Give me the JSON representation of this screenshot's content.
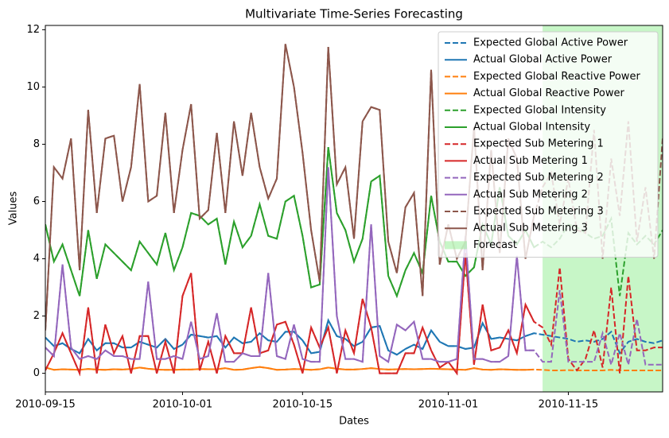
{
  "chart_data": {
    "type": "line",
    "title": "Multivariate Time-Series Forecasting",
    "x_label": "Dates",
    "y_label": "Values",
    "x": [
      "2010-09-15",
      "2010-09-16",
      "2010-09-17",
      "2010-09-18",
      "2010-09-19",
      "2010-09-20",
      "2010-09-21",
      "2010-09-22",
      "2010-09-23",
      "2010-09-24",
      "2010-09-25",
      "2010-09-26",
      "2010-09-27",
      "2010-09-28",
      "2010-09-29",
      "2010-09-30",
      "2010-10-01",
      "2010-10-02",
      "2010-10-03",
      "2010-10-04",
      "2010-10-05",
      "2010-10-06",
      "2010-10-07",
      "2010-10-08",
      "2010-10-09",
      "2010-10-10",
      "2010-10-11",
      "2010-10-12",
      "2010-10-13",
      "2010-10-14",
      "2010-10-15",
      "2010-10-16",
      "2010-10-17",
      "2010-10-18",
      "2010-10-19",
      "2010-10-20",
      "2010-10-21",
      "2010-10-22",
      "2010-10-23",
      "2010-10-24",
      "2010-10-25",
      "2010-10-26",
      "2010-10-27",
      "2010-10-28",
      "2010-10-29",
      "2010-10-30",
      "2010-10-31",
      "2010-11-01",
      "2010-11-02",
      "2010-11-03",
      "2010-11-04",
      "2010-11-05",
      "2010-11-06",
      "2010-11-07",
      "2010-11-08",
      "2010-11-09",
      "2010-11-10",
      "2010-11-11",
      "2010-11-12",
      "2010-11-13",
      "2010-11-14",
      "2010-11-15",
      "2010-11-16",
      "2010-11-17",
      "2010-11-18",
      "2010-11-19",
      "2010-11-20",
      "2010-11-21",
      "2010-11-22",
      "2010-11-23",
      "2010-11-24",
      "2010-11-25",
      "2010-11-26"
    ],
    "series": [
      {
        "name": "Expected Global Active Power",
        "color": "#1f77b4",
        "style": "dashed",
        "values": [
          1.25,
          0.95,
          1.05,
          0.85,
          0.7,
          1.2,
          0.8,
          1.05,
          1.05,
          0.9,
          0.9,
          1.1,
          1.0,
          0.9,
          1.2,
          0.85,
          1.0,
          1.35,
          1.3,
          1.25,
          1.3,
          0.9,
          1.25,
          1.05,
          1.1,
          1.4,
          1.15,
          1.1,
          1.45,
          1.45,
          1.15,
          0.7,
          0.75,
          1.85,
          1.3,
          1.2,
          0.95,
          1.1,
          1.6,
          1.65,
          0.8,
          0.65,
          0.85,
          1.0,
          0.85,
          1.5,
          1.1,
          0.95,
          0.95,
          0.85,
          0.9,
          1.75,
          1.2,
          1.25,
          1.2,
          1.15,
          1.3,
          1.4,
          1.35,
          1.3,
          1.25,
          1.2,
          1.1,
          1.15,
          1.1,
          1.2,
          1.45,
          0.7,
          1.1,
          1.2,
          1.1,
          1.05,
          1.15
        ]
      },
      {
        "name": "Actual Global Active Power",
        "color": "#1f77b4",
        "style": "solid",
        "values": [
          1.25,
          0.95,
          1.05,
          0.85,
          0.7,
          1.2,
          0.8,
          1.05,
          1.05,
          0.9,
          0.9,
          1.1,
          1.0,
          0.9,
          1.2,
          0.85,
          1.0,
          1.35,
          1.3,
          1.25,
          1.3,
          0.9,
          1.25,
          1.05,
          1.1,
          1.4,
          1.15,
          1.1,
          1.45,
          1.45,
          1.15,
          0.7,
          0.75,
          1.85,
          1.3,
          1.2,
          0.95,
          1.1,
          1.6,
          1.65,
          0.8,
          0.65,
          0.85,
          1.0,
          0.85,
          1.5,
          1.1,
          0.95,
          0.95,
          0.85,
          0.9,
          1.75,
          1.2,
          1.25,
          1.2,
          1.15,
          1.3,
          1.4,
          null,
          null,
          null,
          null,
          null,
          null,
          null,
          null,
          null,
          null,
          null,
          null,
          null,
          null,
          null
        ]
      },
      {
        "name": "Expected Global Reactive Power",
        "color": "#ff7f0e",
        "style": "dashed",
        "values": [
          0.2,
          0.12,
          0.14,
          0.13,
          0.12,
          0.15,
          0.13,
          0.12,
          0.14,
          0.13,
          0.15,
          0.2,
          0.16,
          0.13,
          0.12,
          0.12,
          0.13,
          0.13,
          0.15,
          0.14,
          0.14,
          0.18,
          0.12,
          0.13,
          0.18,
          0.22,
          0.18,
          0.12,
          0.13,
          0.15,
          0.14,
          0.12,
          0.14,
          0.2,
          0.16,
          0.13,
          0.13,
          0.15,
          0.18,
          0.15,
          0.13,
          0.14,
          0.15,
          0.14,
          0.15,
          0.16,
          0.15,
          0.14,
          0.13,
          0.12,
          0.18,
          0.13,
          0.12,
          0.14,
          0.13,
          0.12,
          0.12,
          0.13,
          0.12,
          0.1,
          0.1,
          0.11,
          0.1,
          0.1,
          0.1,
          0.1,
          0.12,
          0.1,
          0.1,
          0.1,
          0.1,
          0.1,
          0.1
        ]
      },
      {
        "name": "Actual Global Reactive Power",
        "color": "#ff7f0e",
        "style": "solid",
        "values": [
          0.2,
          0.12,
          0.14,
          0.13,
          0.12,
          0.15,
          0.13,
          0.12,
          0.14,
          0.13,
          0.15,
          0.2,
          0.16,
          0.13,
          0.12,
          0.12,
          0.13,
          0.13,
          0.15,
          0.14,
          0.14,
          0.18,
          0.12,
          0.13,
          0.18,
          0.22,
          0.18,
          0.12,
          0.13,
          0.15,
          0.14,
          0.12,
          0.14,
          0.2,
          0.16,
          0.13,
          0.13,
          0.15,
          0.18,
          0.15,
          0.13,
          0.14,
          0.15,
          0.14,
          0.15,
          0.16,
          0.15,
          0.14,
          0.13,
          0.12,
          0.18,
          0.13,
          0.12,
          0.14,
          0.13,
          0.12,
          0.12,
          0.13,
          null,
          null,
          null,
          null,
          null,
          null,
          null,
          null,
          null,
          null,
          null,
          null,
          null,
          null,
          null
        ]
      },
      {
        "name": "Expected Global Intensity",
        "color": "#2ca02c",
        "style": "dashed",
        "values": [
          5.2,
          3.9,
          4.5,
          3.6,
          2.7,
          5.0,
          3.3,
          4.5,
          4.2,
          3.9,
          3.6,
          4.6,
          4.2,
          3.8,
          4.9,
          3.6,
          4.4,
          5.6,
          5.5,
          5.2,
          5.4,
          3.8,
          5.3,
          4.4,
          4.8,
          5.9,
          4.8,
          4.7,
          6.0,
          6.2,
          4.8,
          3.0,
          3.1,
          7.9,
          5.6,
          5.0,
          3.9,
          4.7,
          6.7,
          6.9,
          3.4,
          2.7,
          3.6,
          4.2,
          3.5,
          6.2,
          4.6,
          3.9,
          3.9,
          3.4,
          3.7,
          5.2,
          4.5,
          6.5,
          4.8,
          4.5,
          5.0,
          4.4,
          4.6,
          4.4,
          4.7,
          5.2,
          5.1,
          4.9,
          4.7,
          4.8,
          5.4,
          2.7,
          4.9,
          4.5,
          4.8,
          4.5,
          5.0
        ]
      },
      {
        "name": "Actual Global Intensity",
        "color": "#2ca02c",
        "style": "solid",
        "values": [
          5.2,
          3.9,
          4.5,
          3.6,
          2.7,
          5.0,
          3.3,
          4.5,
          4.2,
          3.9,
          3.6,
          4.6,
          4.2,
          3.8,
          4.9,
          3.6,
          4.4,
          5.6,
          5.5,
          5.2,
          5.4,
          3.8,
          5.3,
          4.4,
          4.8,
          5.9,
          4.8,
          4.7,
          6.0,
          6.2,
          4.8,
          3.0,
          3.1,
          7.9,
          5.6,
          5.0,
          3.9,
          4.7,
          6.7,
          6.9,
          3.4,
          2.7,
          3.6,
          4.2,
          3.5,
          6.2,
          4.6,
          3.9,
          3.9,
          3.4,
          3.7,
          5.2,
          4.5,
          6.5,
          4.8,
          4.5,
          5.0,
          4.4,
          null,
          null,
          null,
          null,
          null,
          null,
          null,
          null,
          null,
          null,
          null,
          null,
          null,
          null,
          null
        ]
      },
      {
        "name": "Expected Sub Metering 1",
        "color": "#d62728",
        "style": "dashed",
        "values": [
          0.1,
          0.7,
          1.4,
          0.7,
          0.0,
          2.3,
          0.0,
          1.7,
          0.7,
          1.3,
          0.0,
          1.3,
          1.3,
          0.0,
          1.1,
          0.0,
          2.7,
          3.5,
          0.1,
          1.1,
          0.0,
          1.3,
          0.7,
          0.7,
          2.3,
          0.7,
          0.8,
          1.7,
          1.8,
          1.0,
          0.0,
          1.6,
          0.9,
          1.6,
          0.0,
          1.5,
          0.7,
          2.6,
          1.6,
          0.0,
          0.0,
          0.0,
          0.7,
          0.7,
          1.6,
          0.8,
          0.2,
          0.4,
          0.0,
          4.2,
          0.3,
          2.4,
          0.8,
          0.9,
          1.5,
          0.7,
          2.4,
          1.8,
          1.6,
          1.0,
          3.7,
          0.5,
          0.1,
          0.5,
          1.5,
          0.2,
          3.0,
          0.0,
          3.4,
          0.8,
          0.8,
          0.9,
          0.9
        ]
      },
      {
        "name": "Actual Sub Metering 1",
        "color": "#d62728",
        "style": "solid",
        "values": [
          0.1,
          0.7,
          1.4,
          0.7,
          0.0,
          2.3,
          0.0,
          1.7,
          0.7,
          1.3,
          0.0,
          1.3,
          1.3,
          0.0,
          1.1,
          0.0,
          2.7,
          3.5,
          0.1,
          1.1,
          0.0,
          1.3,
          0.7,
          0.7,
          2.3,
          0.7,
          0.8,
          1.7,
          1.8,
          1.0,
          0.0,
          1.6,
          0.9,
          1.6,
          0.0,
          1.5,
          0.7,
          2.6,
          1.6,
          0.0,
          0.0,
          0.0,
          0.7,
          0.7,
          1.6,
          0.8,
          0.2,
          0.4,
          0.0,
          4.2,
          0.3,
          2.4,
          0.8,
          0.9,
          1.5,
          0.7,
          2.4,
          1.8,
          null,
          null,
          null,
          null,
          null,
          null,
          null,
          null,
          null,
          null,
          null,
          null,
          null,
          null,
          null
        ]
      },
      {
        "name": "Expected Sub Metering 2",
        "color": "#9467bd",
        "style": "dashed",
        "values": [
          0.9,
          0.6,
          3.8,
          0.9,
          0.5,
          0.6,
          0.5,
          0.8,
          0.6,
          0.6,
          0.5,
          0.5,
          3.2,
          0.5,
          0.5,
          0.6,
          0.5,
          1.8,
          0.5,
          0.6,
          2.1,
          0.4,
          0.4,
          0.7,
          0.6,
          0.6,
          3.5,
          0.6,
          0.5,
          1.7,
          0.5,
          0.4,
          0.4,
          7.2,
          2.0,
          0.5,
          0.5,
          0.4,
          5.2,
          0.6,
          0.4,
          1.7,
          1.5,
          1.8,
          0.5,
          0.5,
          0.4,
          0.4,
          0.5,
          4.8,
          0.5,
          0.5,
          0.4,
          0.4,
          0.6,
          4.1,
          0.8,
          0.8,
          0.4,
          0.4,
          2.9,
          0.4,
          0.4,
          0.4,
          0.4,
          1.4,
          0.3,
          1.4,
          0.3,
          1.9,
          0.3,
          0.3,
          0.3
        ]
      },
      {
        "name": "Actual Sub Metering 2",
        "color": "#9467bd",
        "style": "solid",
        "values": [
          0.9,
          0.6,
          3.8,
          0.9,
          0.5,
          0.6,
          0.5,
          0.8,
          0.6,
          0.6,
          0.5,
          0.5,
          3.2,
          0.5,
          0.5,
          0.6,
          0.5,
          1.8,
          0.5,
          0.6,
          2.1,
          0.4,
          0.4,
          0.7,
          0.6,
          0.6,
          3.5,
          0.6,
          0.5,
          1.7,
          0.5,
          0.4,
          0.4,
          7.2,
          2.0,
          0.5,
          0.5,
          0.4,
          5.2,
          0.6,
          0.4,
          1.7,
          1.5,
          1.8,
          0.5,
          0.5,
          0.4,
          0.4,
          0.5,
          4.8,
          0.5,
          0.5,
          0.4,
          0.4,
          0.6,
          4.1,
          0.8,
          0.8,
          null,
          null,
          null,
          null,
          null,
          null,
          null,
          null,
          null,
          null,
          null,
          null,
          null,
          null,
          null
        ]
      },
      {
        "name": "Expected Sub Metering 3",
        "color": "#8c564b",
        "style": "dashed",
        "values": [
          1.5,
          7.2,
          6.8,
          8.2,
          3.6,
          9.2,
          5.6,
          8.2,
          8.3,
          6.0,
          7.2,
          10.1,
          6.0,
          6.2,
          9.1,
          5.6,
          7.8,
          9.4,
          5.4,
          5.7,
          8.4,
          5.6,
          8.8,
          6.9,
          9.1,
          7.2,
          6.1,
          6.8,
          11.5,
          10.0,
          7.7,
          5.0,
          3.2,
          11.4,
          6.6,
          7.2,
          4.7,
          8.8,
          9.3,
          9.2,
          4.6,
          3.5,
          5.8,
          6.3,
          2.7,
          10.6,
          3.8,
          5.2,
          4.0,
          4.6,
          8.6,
          3.6,
          7.8,
          4.2,
          8.2,
          7.5,
          4.0,
          5.5,
          6.5,
          7.0,
          5.2,
          6.8,
          5.0,
          4.9,
          8.5,
          4.0,
          7.5,
          5.5,
          8.8,
          4.6,
          6.5,
          4.0,
          8.2
        ]
      },
      {
        "name": "Actual Sub Metering 3",
        "color": "#8c564b",
        "style": "solid",
        "values": [
          1.5,
          7.2,
          6.8,
          8.2,
          3.6,
          9.2,
          5.6,
          8.2,
          8.3,
          6.0,
          7.2,
          10.1,
          6.0,
          6.2,
          9.1,
          5.6,
          7.8,
          9.4,
          5.4,
          5.7,
          8.4,
          5.6,
          8.8,
          6.9,
          9.1,
          7.2,
          6.1,
          6.8,
          11.5,
          10.0,
          7.7,
          5.0,
          3.2,
          11.4,
          6.6,
          7.2,
          4.7,
          8.8,
          9.3,
          9.2,
          4.6,
          3.5,
          5.8,
          6.3,
          2.7,
          10.6,
          3.8,
          5.2,
          4.0,
          4.6,
          8.6,
          3.6,
          7.8,
          4.2,
          8.2,
          7.5,
          4.0,
          5.5,
          null,
          null,
          null,
          null,
          null,
          null,
          null,
          null,
          null,
          null,
          null,
          null,
          null,
          null,
          null
        ]
      }
    ],
    "forecast": {
      "name": "Forecast",
      "color": "#90ee90",
      "span": [
        "2010-11-12",
        "2010-11-26"
      ]
    },
    "xlim": [
      "2010-09-15",
      "2010-11-26"
    ],
    "xticks": [
      "2010-09-15",
      "2010-10-01",
      "2010-10-15",
      "2010-11-01",
      "2010-11-15"
    ],
    "ylim": [
      -0.65,
      12.15
    ],
    "yticks": [
      0,
      2,
      4,
      6,
      8,
      10,
      12
    ],
    "legend": "upper right",
    "grid": false
  }
}
